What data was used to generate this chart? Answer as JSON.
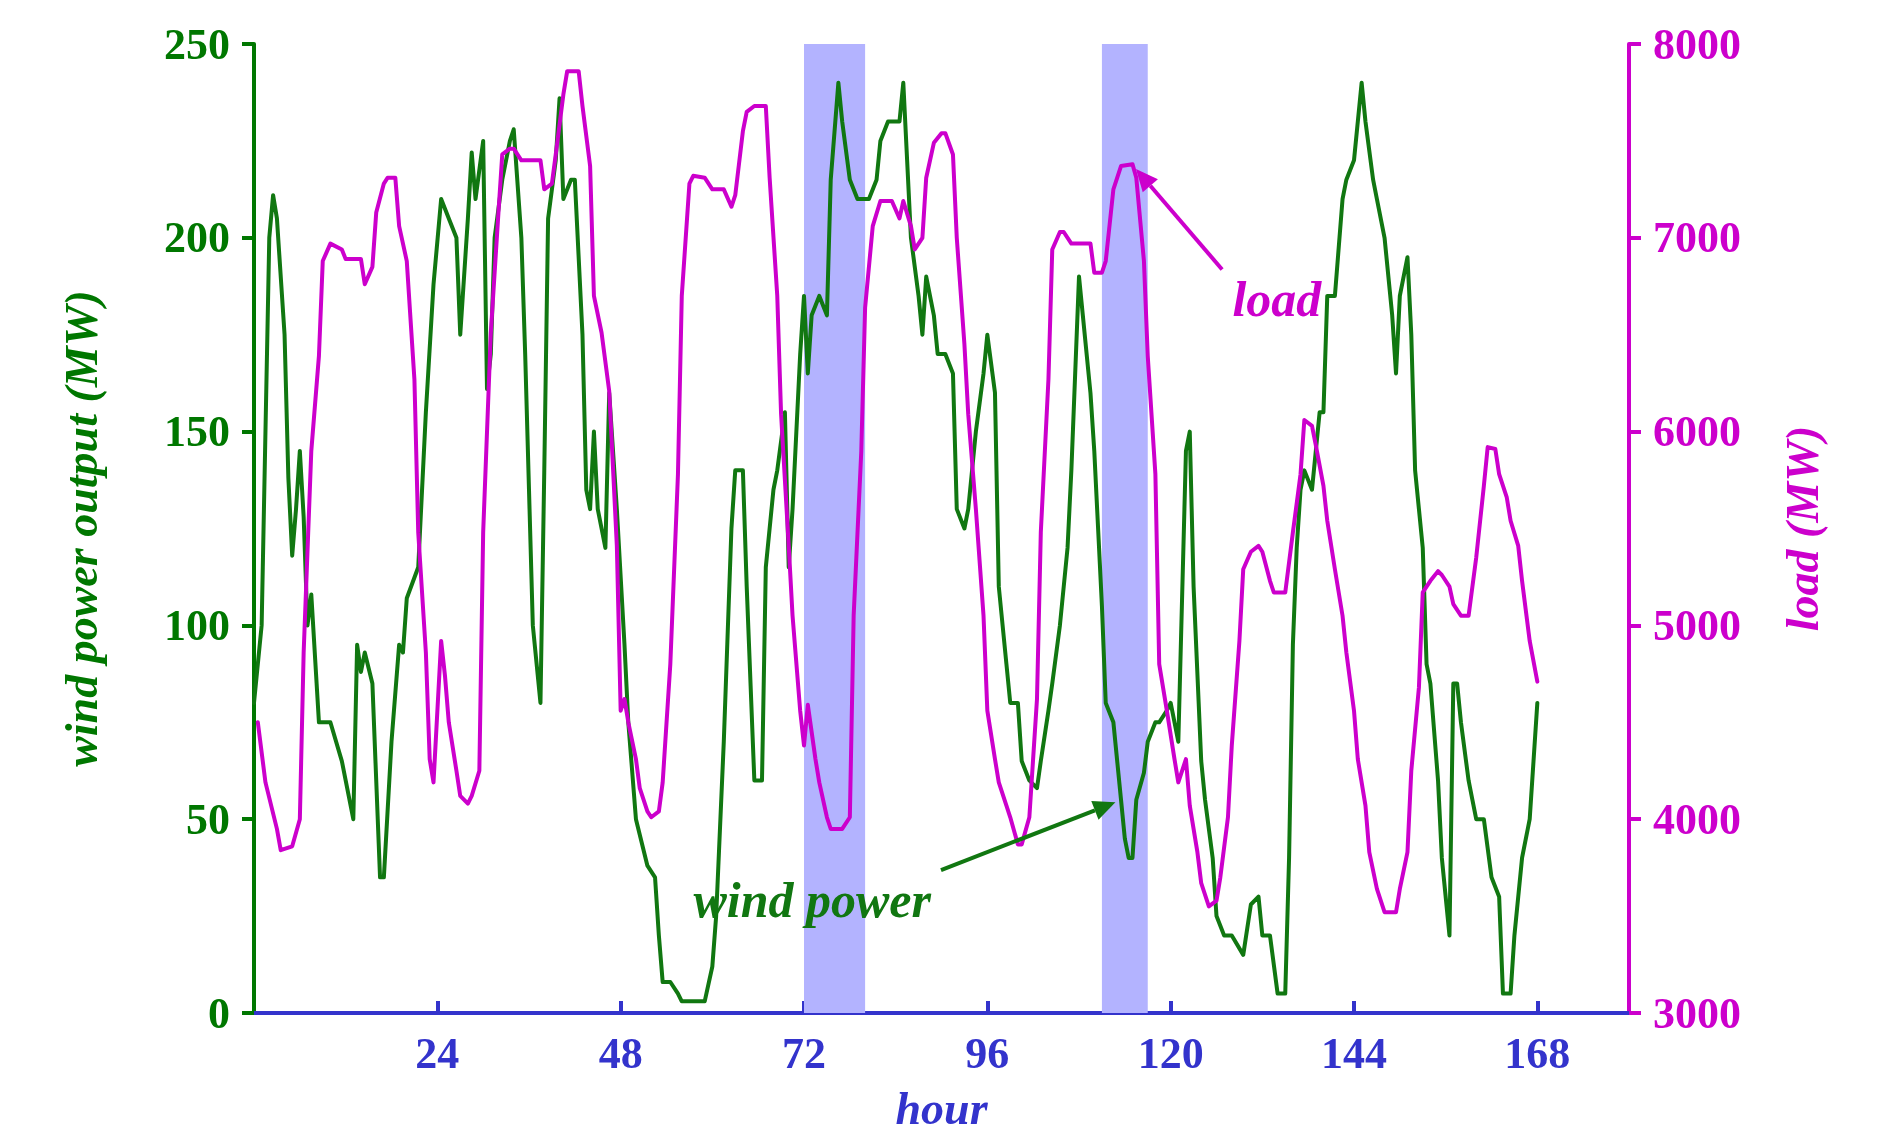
{
  "chart_data": {
    "type": "line",
    "xlabel": "hour",
    "ylabel": "wind power output (MW)",
    "y2label": "load (MW)",
    "xlim": [
      0,
      180
    ],
    "xticks": [
      24,
      48,
      72,
      96,
      120,
      144,
      168
    ],
    "ylim": [
      0,
      250
    ],
    "yticks": [
      0,
      50,
      100,
      150,
      200,
      250
    ],
    "y2lim": [
      3000,
      8000
    ],
    "y2ticks": [
      3000,
      4000,
      5000,
      6000,
      7000,
      8000
    ],
    "bands": [
      {
        "axis": "x",
        "from": 72,
        "to": 80,
        "color": "#b3b3ff"
      },
      {
        "axis": "x",
        "from": 111,
        "to": 117,
        "color": "#b3b3ff"
      }
    ],
    "series": [
      {
        "name": "wind power",
        "color": "#117711",
        "x": [
          0,
          1,
          2,
          2.5,
          3,
          4,
          4.5,
          5,
          5.5,
          6,
          6.5,
          7,
          7.5,
          8.5,
          10,
          11.5,
          13,
          13.5,
          14,
          14.5,
          15.5,
          16.5,
          17,
          18,
          19,
          19.5,
          20,
          21.5,
          22.5,
          23.5,
          24.5,
          25.5,
          26.5,
          27,
          28,
          28.5,
          29,
          30,
          30.5,
          31,
          31.5,
          32.5,
          33.5,
          34,
          35,
          35.5,
          36.5,
          37.5,
          38,
          38.5,
          39.5,
          40,
          40.5,
          41.5,
          42,
          43,
          43.5,
          44,
          44.5,
          45,
          46,
          46.5,
          47.5,
          48.5,
          49,
          50,
          51,
          51.5,
          52.5,
          53,
          53.5,
          54.5,
          55.5,
          56,
          57.5,
          59,
          60,
          60.5,
          61.5,
          62.5,
          63,
          64,
          64.5,
          65.5,
          66.5,
          67,
          68,
          68.5,
          69.5,
          70,
          70.5,
          71.5,
          72,
          72.5,
          73,
          74,
          75,
          75.5,
          76.5,
          77,
          78,
          79,
          80,
          80.5,
          81.5,
          82,
          83,
          84,
          84.5,
          85,
          85.5,
          86,
          87,
          87.5,
          88,
          89,
          89.5,
          90.5,
          91.5,
          92,
          93,
          93.5,
          94.5,
          95.5,
          96,
          97,
          97.5,
          98.5,
          99,
          100,
          100.5,
          101.5,
          102.5,
          103,
          104,
          104.5,
          105.5,
          106.5,
          107,
          108,
          108.5,
          109.5,
          110,
          111,
          111.5,
          112.5,
          113.5,
          114,
          114.5,
          115,
          115.5,
          116.5,
          117,
          118,
          118.5,
          119.5,
          120,
          121,
          122,
          122.5,
          123,
          124,
          124.5,
          125.5,
          126,
          127,
          128,
          129.5,
          130.5,
          131.5,
          132,
          133,
          134,
          135,
          135.5,
          136,
          136.5,
          137,
          137.5,
          138.5,
          139.5,
          140,
          140.5,
          141.5,
          142.5,
          143,
          144,
          145,
          145.5,
          146.5,
          147,
          148,
          149,
          149.5,
          150,
          151,
          151.5,
          152,
          153,
          153.5,
          154,
          155,
          155.5,
          156.5,
          157,
          157.5,
          158,
          159,
          159.5,
          160,
          161,
          162,
          163,
          163.5,
          164.5,
          165,
          166,
          167,
          167.5,
          168
        ],
        "values": [
          80,
          100,
          200,
          211,
          205,
          175,
          138,
          118,
          130,
          145,
          128,
          100,
          108,
          75,
          75,
          65,
          50,
          95,
          88,
          93,
          85,
          35,
          35,
          70,
          95,
          93,
          107,
          115,
          155,
          188,
          210,
          205,
          200,
          175,
          205,
          222,
          210,
          225,
          161,
          170,
          200,
          215,
          225,
          228,
          200,
          170,
          100,
          80,
          140,
          205,
          220,
          236,
          210,
          215,
          215,
          175,
          135,
          130,
          150,
          130,
          120,
          160,
          130,
          95,
          75,
          50,
          42,
          38,
          35,
          20,
          8,
          8,
          5,
          3,
          3,
          3,
          12,
          25,
          70,
          125,
          140,
          140,
          110,
          60,
          60,
          115,
          135,
          140,
          155,
          115,
          130,
          170,
          185,
          165,
          180,
          185,
          180,
          215,
          240,
          230,
          215,
          210,
          210,
          210,
          215,
          225,
          230,
          230,
          230,
          240,
          220,
          200,
          185,
          175,
          190,
          180,
          170,
          170,
          165,
          130,
          125,
          130,
          150,
          165,
          175,
          160,
          110,
          90,
          80,
          80,
          65,
          60,
          58,
          65,
          78,
          85,
          100,
          120,
          140,
          190,
          180,
          160,
          145,
          105,
          80,
          75,
          55,
          45,
          40,
          40,
          55,
          62,
          70,
          75,
          75,
          78,
          80,
          70,
          145,
          150,
          110,
          65,
          55,
          40,
          25,
          20,
          20,
          15,
          28,
          30,
          20,
          20,
          5,
          5,
          40,
          95,
          120,
          135,
          140,
          135,
          155,
          155,
          185,
          185,
          210,
          215,
          220,
          240,
          230,
          215,
          210,
          200,
          180,
          165,
          185,
          195,
          175,
          140,
          120,
          90,
          85,
          60,
          40,
          20,
          85,
          85,
          75,
          60,
          55,
          50,
          50,
          35,
          30,
          5,
          5,
          20,
          40,
          50,
          65,
          80
        ]
      },
      {
        "name": "load",
        "color": "#cc00cc",
        "axis": "y2",
        "x": [
          0.5,
          1.5,
          3,
          3.5,
          5,
          6,
          6.5,
          7.5,
          8.5,
          9,
          10,
          11.5,
          12,
          14,
          14.5,
          15.5,
          16,
          17,
          17.5,
          18.5,
          19,
          20,
          21,
          21.5,
          22.5,
          23,
          23.5,
          24.5,
          25,
          25.5,
          26.5,
          27,
          28,
          28.5,
          29.5,
          30,
          31,
          32,
          32.5,
          33.5,
          34,
          35,
          37.5,
          38,
          39,
          39.5,
          40.5,
          41,
          42.5,
          43,
          44,
          44.5,
          45.5,
          46.5,
          47.5,
          48,
          48.5,
          49,
          50,
          50.5,
          51.5,
          52,
          53,
          53.5,
          54.5,
          55.5,
          56,
          57,
          57.5,
          59,
          60,
          61.5,
          62.5,
          63,
          64,
          64.5,
          65.5,
          67,
          67.5,
          68.5,
          69,
          70,
          70.5,
          71.5,
          72,
          72.5,
          73.5,
          74,
          75,
          75.5,
          77,
          78,
          78.5,
          79.5,
          80,
          81,
          82,
          83.5,
          84.5,
          85,
          86,
          86.5,
          87.5,
          88,
          89,
          90,
          90.5,
          91.5,
          92,
          93,
          93.5,
          94.5,
          95.5,
          96,
          97,
          97.5,
          98.5,
          99,
          100,
          100.5,
          101.5,
          102.5,
          103,
          104,
          104.5,
          105.5,
          106,
          107,
          109.5,
          110,
          111,
          111.5,
          112.5,
          113.5,
          115,
          115.5,
          116.5,
          117,
          118,
          118.5,
          119.5,
          120.5,
          121,
          122,
          122.5,
          123.5,
          124,
          125,
          126,
          126.5,
          127.5,
          128,
          129,
          129.5,
          130.5,
          131.5,
          132,
          133,
          133.5,
          135,
          136,
          137,
          137.5,
          138.5,
          139,
          140,
          140.5,
          141.5,
          142.5,
          143,
          144,
          144.5,
          145.5,
          146,
          147,
          148,
          149.5,
          150,
          151,
          151.5,
          152.5,
          153,
          154,
          155,
          155.5,
          156.5,
          157,
          158,
          159,
          160,
          161,
          161.5,
          162.5,
          163,
          164,
          164.5,
          165.5,
          166,
          167,
          168
        ],
        "values": [
          4500,
          4190,
          3950,
          3840,
          3860,
          4000,
          4860,
          5900,
          6390,
          6880,
          6970,
          6940,
          6890,
          6890,
          6760,
          6850,
          7130,
          7280,
          7310,
          7310,
          7060,
          6880,
          6270,
          5480,
          4860,
          4310,
          4190,
          4920,
          4740,
          4500,
          4250,
          4120,
          4080,
          4120,
          4250,
          5480,
          6510,
          7130,
          7430,
          7460,
          7460,
          7400,
          7400,
          7250,
          7280,
          7430,
          7740,
          7860,
          7860,
          7680,
          7370,
          6700,
          6510,
          6210,
          5410,
          4560,
          4620,
          4500,
          4310,
          4160,
          4040,
          4010,
          4040,
          4190,
          4800,
          5780,
          6700,
          7280,
          7320,
          7310,
          7250,
          7250,
          7160,
          7220,
          7550,
          7650,
          7680,
          7680,
          7310,
          6700,
          6090,
          5410,
          5050,
          4560,
          4380,
          4590,
          4310,
          4190,
          4010,
          3950,
          3950,
          4010,
          5050,
          5900,
          6640,
          7060,
          7190,
          7190,
          7100,
          7190,
          7060,
          6940,
          7000,
          7310,
          7490,
          7540,
          7540,
          7430,
          7000,
          6450,
          6090,
          5600,
          5050,
          4560,
          4310,
          4190,
          4070,
          4010,
          3870,
          3870,
          4010,
          4620,
          5480,
          6270,
          6940,
          7030,
          7030,
          6970,
          6970,
          6820,
          6820,
          6880,
          7250,
          7370,
          7380,
          7310,
          6880,
          6390,
          5780,
          4800,
          4560,
          4310,
          4190,
          4310,
          4070,
          3830,
          3670,
          3550,
          3580,
          3700,
          4010,
          4380,
          4920,
          5290,
          5380,
          5410,
          5380,
          5230,
          5170,
          5170,
          5480,
          5780,
          6060,
          6030,
          5930,
          5720,
          5540,
          5290,
          5050,
          4860,
          4560,
          4310,
          4070,
          3830,
          3640,
          3520,
          3520,
          3640,
          3830,
          4250,
          4680,
          5170,
          5230,
          5280,
          5260,
          5200,
          5110,
          5050,
          5050,
          5350,
          5720,
          5920,
          5910,
          5780,
          5660,
          5540,
          5410,
          5230,
          4920,
          4710
        ]
      }
    ]
  }
}
